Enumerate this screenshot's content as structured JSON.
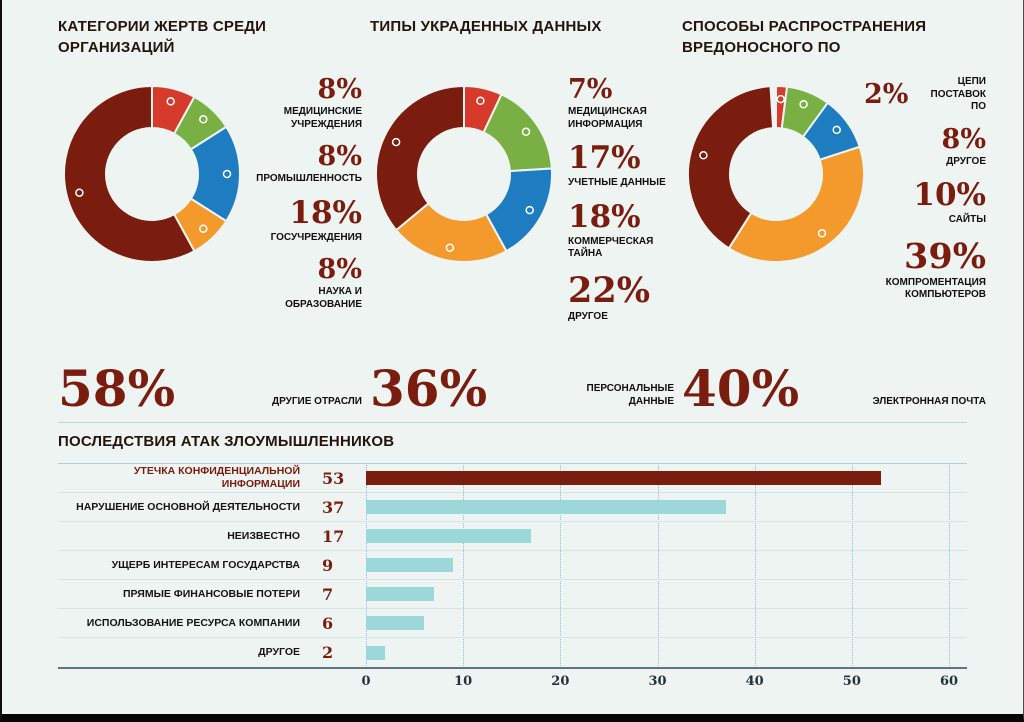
{
  "page": {
    "background": "#eef4f2",
    "accent_maroon": "#7a1c0e",
    "teal_bar": "#9cd8d9"
  },
  "chart_data": [
    {
      "type": "pie",
      "title": "КАТЕГОРИИ ЖЕРТВ СРЕДИ ОРГАНИЗАЦИЙ",
      "label_align": "right",
      "segments": [
        {
          "label": "МЕДИЦИНСКИЕ УЧРЕЖДЕНИЯ",
          "value": 8,
          "display": "8%",
          "color": "#d63a2b"
        },
        {
          "label": "ПРОМЫШЛЕННОСТЬ",
          "value": 8,
          "display": "8%",
          "color": "#79b043"
        },
        {
          "label": "ГОСУЧРЕЖДЕНИЯ",
          "value": 18,
          "display": "18%",
          "color": "#1e7cc0"
        },
        {
          "label": "НАУКА И ОБРАЗОВАНИЕ",
          "value": 8,
          "display": "8%",
          "color": "#f49a2d"
        },
        {
          "label": "ДРУГИЕ ОТРАСЛИ",
          "value": 58,
          "display": "58%",
          "color": "#7a1c0e"
        }
      ]
    },
    {
      "type": "pie",
      "title": "ТИПЫ УКРАДЕННЫХ ДАННЫХ",
      "label_align": "left",
      "segments": [
        {
          "label": "МЕДИЦИНСКАЯ ИНФОРМАЦИЯ",
          "value": 7,
          "display": "7%",
          "color": "#d63a2b"
        },
        {
          "label": "УЧЕТНЫЕ ДАННЫЕ",
          "value": 17,
          "display": "17%",
          "color": "#79b043"
        },
        {
          "label": "КОММЕРЧЕСКАЯ ТАЙНА",
          "value": 18,
          "display": "18%",
          "color": "#1e7cc0"
        },
        {
          "label": "ДРУГОЕ",
          "value": 22,
          "display": "22%",
          "color": "#f49a2d"
        },
        {
          "label": "ПЕРСОНАЛЬНЫЕ ДАННЫЕ",
          "value": 36,
          "display": "36%",
          "color": "#7a1c0e"
        }
      ]
    },
    {
      "type": "pie",
      "title": "СПОСОБЫ РАСПРОСТРАНЕНИЯ ВРЕДОНОСНОГО ПО",
      "label_align": "right",
      "segments": [
        {
          "label": "ЦЕПИ ПОСТАВОК ПО",
          "value": 2,
          "display": "2%",
          "color": "#d63a2b",
          "inline": true
        },
        {
          "label": "ДРУГОЕ",
          "value": 8,
          "display": "8%",
          "color": "#79b043"
        },
        {
          "label": "САЙТЫ",
          "value": 10,
          "display": "10%",
          "color": "#1e7cc0"
        },
        {
          "label": "КОМПРОМЕНТАЦИЯ КОМПЬЮТЕРОВ",
          "value": 39,
          "display": "39%",
          "color": "#f49a2d"
        },
        {
          "label": "ЭЛЕКТРОННАЯ ПОЧТА",
          "value": 40,
          "display": "40%",
          "color": "#7a1c0e"
        }
      ]
    },
    {
      "type": "bar",
      "title": "ПОСЛЕДСТВИЯ АТАК ЗЛОУМЫШЛЕННИКОВ",
      "orientation": "horizontal",
      "categories": [
        "УТЕЧКА КОНФИДЕНЦИАЛЬНОЙ ИНФОРМАЦИИ",
        "НАРУШЕНИЕ ОСНОВНОЙ ДЕЯТЕЛЬНОСТИ",
        "НЕИЗВЕСТНО",
        "УЩЕРБ ИНТЕРЕСАМ ГОСУДАРСТВА",
        "ПРЯМЫЕ ФИНАНСОВЫЕ ПОТЕРИ",
        "ИСПОЛЬЗОВАНИЕ РЕСУРСА КОМПАНИИ",
        "ДРУГОЕ"
      ],
      "values": [
        53,
        37,
        17,
        9,
        7,
        6,
        2
      ],
      "bar_colors": [
        "#7a1c0e",
        "#9cd8d9",
        "#9cd8d9",
        "#9cd8d9",
        "#9cd8d9",
        "#9cd8d9",
        "#9cd8d9"
      ],
      "highlight_index": 0,
      "xlim": [
        0,
        60
      ],
      "xticks": [
        0,
        10,
        20,
        30,
        40,
        50,
        60
      ],
      "grid": true,
      "legend": "none"
    }
  ]
}
